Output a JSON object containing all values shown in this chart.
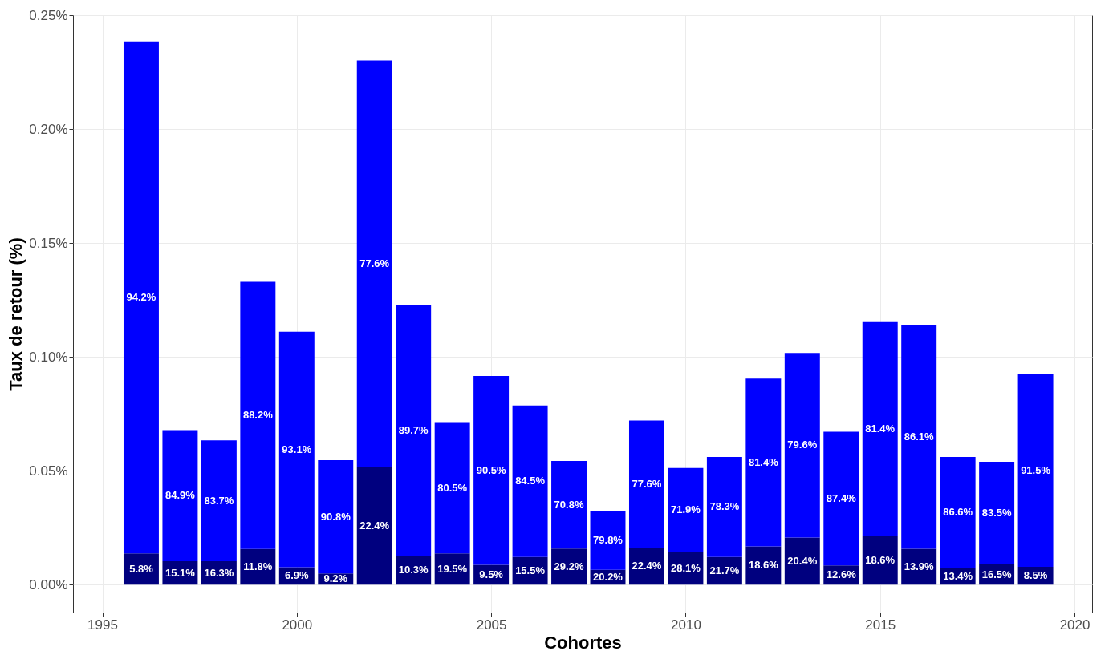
{
  "chart_data": {
    "type": "bar",
    "stacked": true,
    "xlabel": "Cohortes",
    "ylabel": "Taux de retour (%)",
    "x": [
      1996,
      1997,
      1998,
      1999,
      2000,
      2001,
      2002,
      2003,
      2004,
      2005,
      2006,
      2007,
      2008,
      2009,
      2010,
      2011,
      2012,
      2013,
      2014,
      2015,
      2016,
      2017,
      2018,
      2019
    ],
    "xlim": [
      1994.35,
      2020.35
    ],
    "xticks": [
      1995,
      2000,
      2005,
      2010,
      2015,
      2020
    ],
    "ylim": [
      -0.0122,
      0.25
    ],
    "yticks": [
      {
        "value": 0,
        "label": "0.00%"
      },
      {
        "value": 0.05,
        "label": "0.05%"
      },
      {
        "value": 0.1,
        "label": "0.10%"
      },
      {
        "value": 0.15,
        "label": "0.15%"
      },
      {
        "value": 0.2,
        "label": "0.20%"
      },
      {
        "value": 0.25,
        "label": "0.25%"
      }
    ],
    "grid": true,
    "series": [
      {
        "color": "#00007f",
        "values": [
          0.0138,
          0.0103,
          0.0103,
          0.0157,
          0.0077,
          0.005,
          0.0515,
          0.0126,
          0.0138,
          0.0087,
          0.0122,
          0.0159,
          0.0065,
          0.0161,
          0.0144,
          0.0122,
          0.0168,
          0.0207,
          0.0085,
          0.0214,
          0.0158,
          0.0075,
          0.0089,
          0.0079
        ]
      },
      {
        "color": "#0000ff",
        "values": [
          0.2247,
          0.0576,
          0.0531,
          0.1173,
          0.1034,
          0.0497,
          0.1786,
          0.11,
          0.0572,
          0.0829,
          0.0665,
          0.0384,
          0.0259,
          0.056,
          0.0368,
          0.0439,
          0.0737,
          0.081,
          0.0587,
          0.0939,
          0.0981,
          0.0486,
          0.0451,
          0.0847
        ]
      }
    ],
    "annotations": [
      "5.8%",
      "94.2%",
      "15.1%",
      "84.9%",
      "16.3%",
      "83.7%",
      "11.8%",
      "88.2%",
      "6.9%",
      "93.1%",
      "9.2%",
      "90.8%",
      "22.4%",
      "77.6%",
      "10.3%",
      "89.7%",
      "19.5%",
      "80.5%",
      "9.5%",
      "90.5%",
      "15.5%",
      "84.5%",
      "29.2%",
      "70.8%",
      "20.2%",
      "79.8%",
      "22.4%",
      "77.6%",
      "28.1%",
      "71.9%",
      "21.7%",
      "78.3%",
      "18.6%",
      "81.4%",
      "20.4%",
      "79.6%",
      "12.6%",
      "87.4%",
      "18.6%",
      "81.4%",
      "13.9%",
      "86.1%",
      "13.4%",
      "86.6%",
      "16.5%",
      "83.5%",
      "8.5%",
      "91.5%"
    ]
  }
}
